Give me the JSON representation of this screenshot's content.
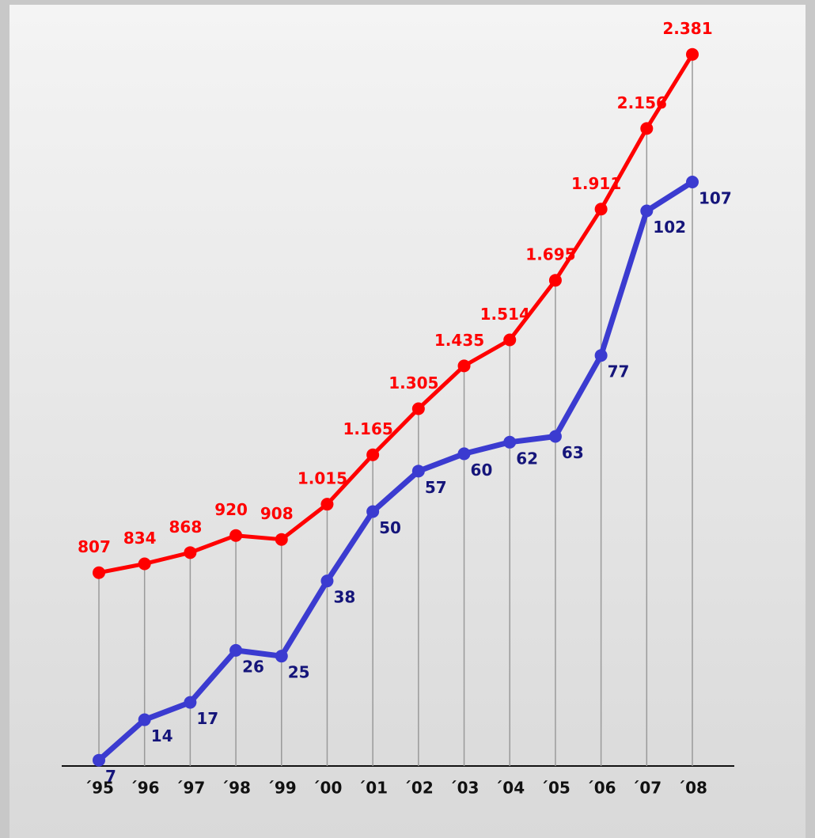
{
  "chart_data": {
    "type": "line",
    "categories": [
      "´95",
      "´96",
      "´97",
      "´98",
      "´99",
      "´00",
      "´01",
      "´02",
      "´03",
      "´04",
      "´05",
      "´06",
      "´07",
      "´08"
    ],
    "series": [
      {
        "color": "#ff0000",
        "label_color": "#ff0000",
        "values": [
          807,
          834,
          868,
          920,
          908,
          1015,
          1165,
          1305,
          1435,
          1514,
          1695,
          1911,
          2156,
          2381
        ],
        "value_labels": [
          "807",
          "834",
          "868",
          "920",
          "908",
          "1.015",
          "1.165",
          "1.305",
          "1.435",
          "1.514",
          "1.695",
          "1.911",
          "2.156",
          "2.381"
        ]
      },
      {
        "color": "#3b3bd0",
        "label_color": "#15157a",
        "axis": "y2",
        "values": [
          7,
          14,
          17,
          26,
          25,
          38,
          50,
          57,
          60,
          62,
          63,
          77,
          102,
          107
        ]
      }
    ],
    "ylim": [
      220,
      2450
    ],
    "y2lim": [
      6,
      133
    ]
  }
}
